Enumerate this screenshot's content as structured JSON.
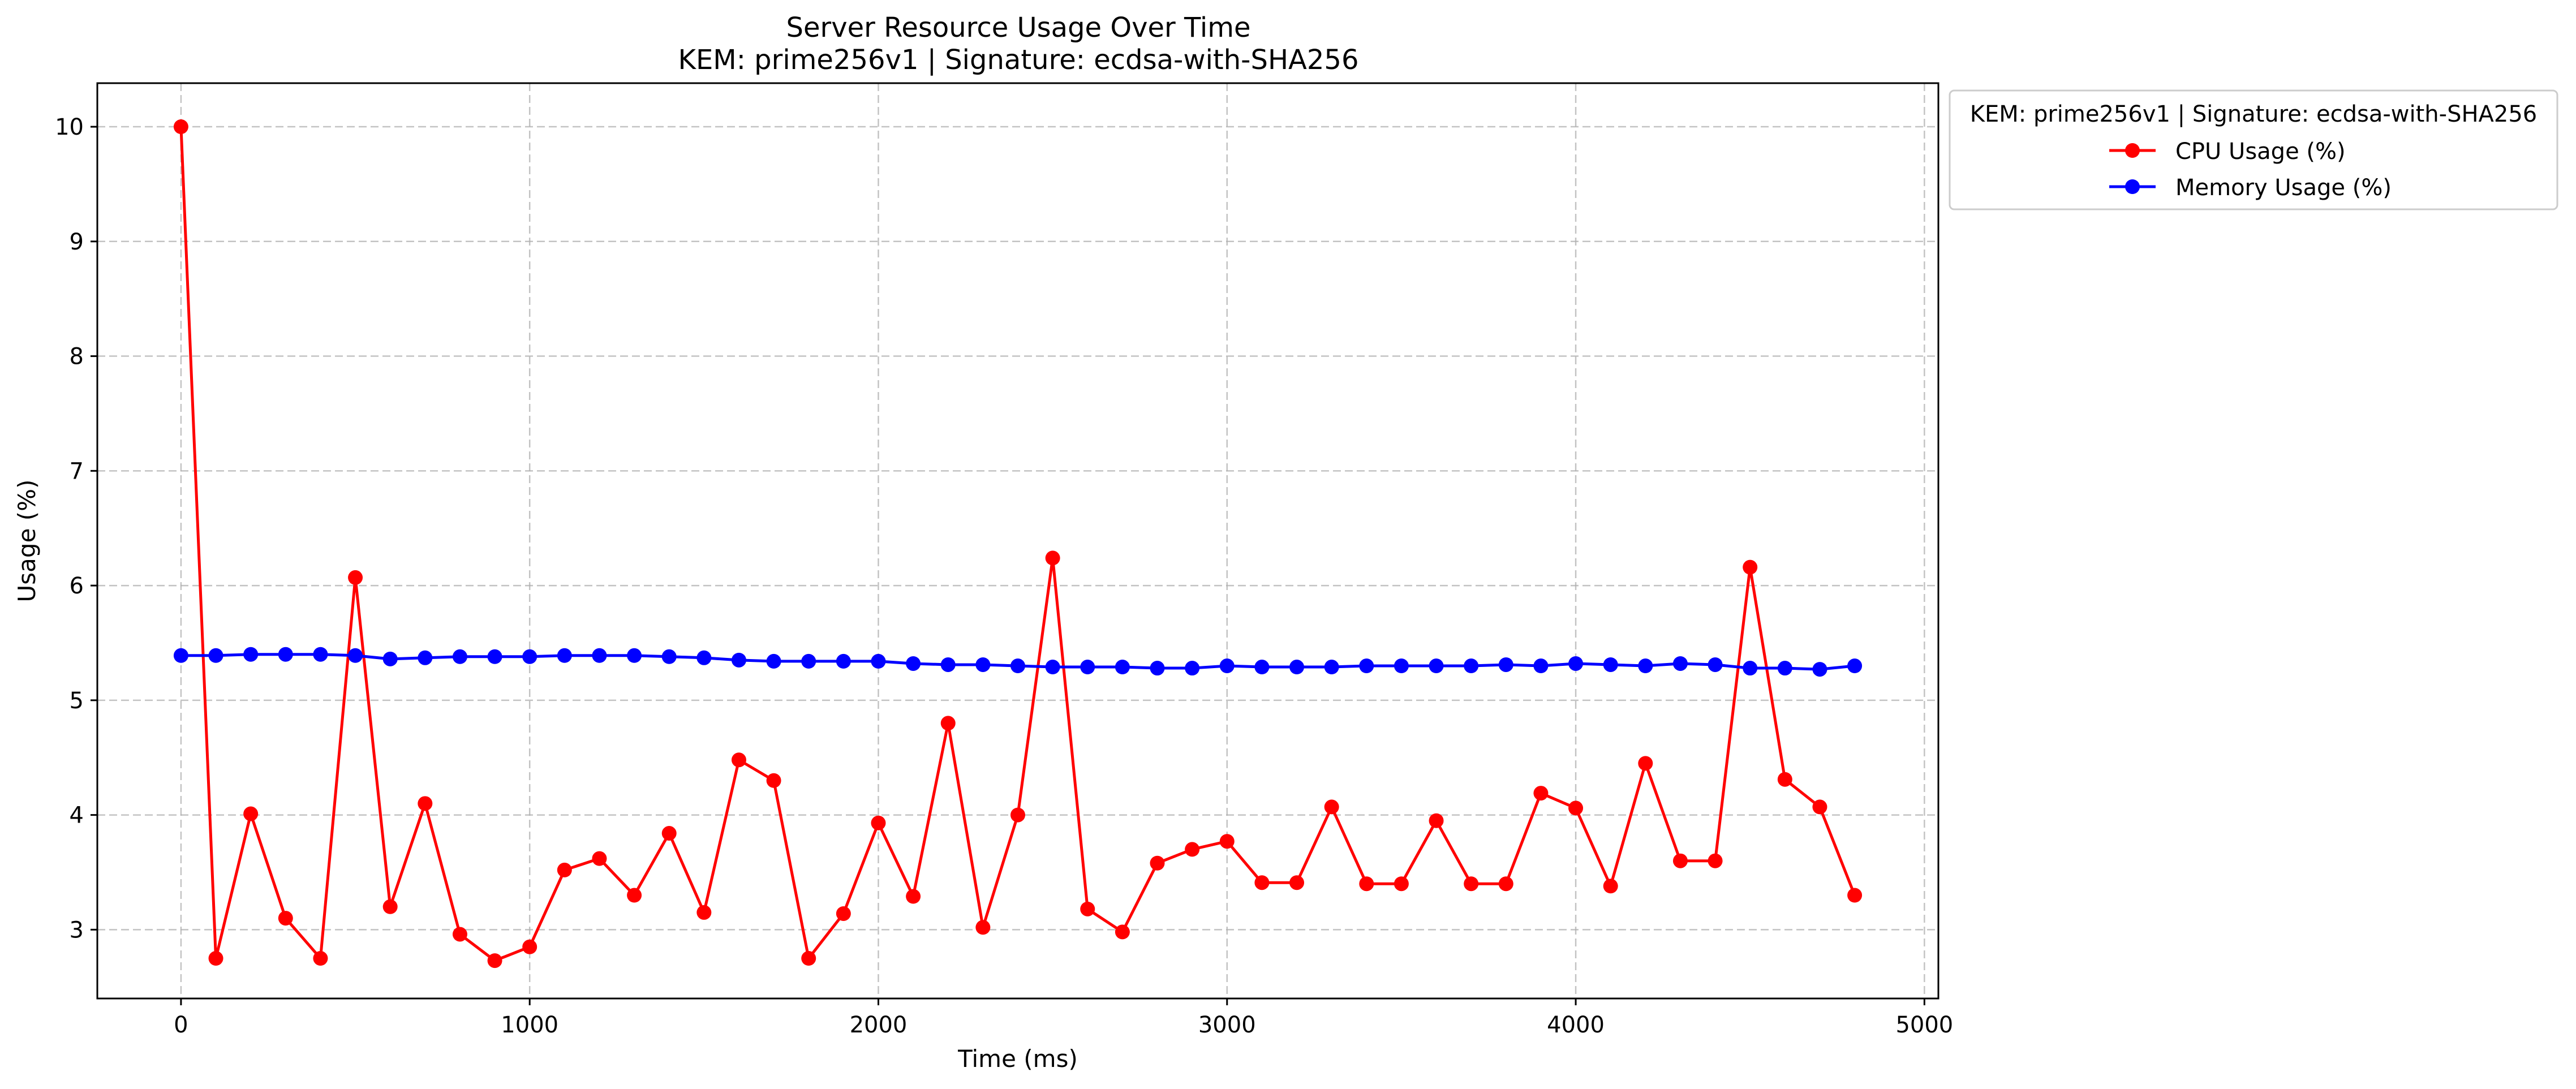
{
  "chart_data": {
    "type": "line",
    "title": "Server Resource Usage Over Time",
    "subtitle": "KEM: prime256v1 | Signature: ecdsa-with-SHA256",
    "xlabel": "Time (ms)",
    "ylabel": "Usage (%)",
    "xlim": [
      -240,
      5040
    ],
    "ylim": [
      2.4,
      10.38
    ],
    "xticks": [
      0,
      1000,
      2000,
      3000,
      4000,
      5000
    ],
    "yticks": [
      3,
      4,
      5,
      6,
      7,
      8,
      9,
      10
    ],
    "grid": true,
    "legend": {
      "title": "KEM: prime256v1 | Signature: ecdsa-with-SHA256",
      "placement": "outside-top-right"
    },
    "x": [
      0,
      100,
      200,
      300,
      400,
      500,
      600,
      700,
      800,
      900,
      1000,
      1100,
      1200,
      1300,
      1400,
      1500,
      1600,
      1700,
      1800,
      1900,
      2000,
      2100,
      2200,
      2300,
      2400,
      2500,
      2600,
      2700,
      2800,
      2900,
      3000,
      3100,
      3200,
      3300,
      3400,
      3500,
      3600,
      3700,
      3800,
      3900,
      4000,
      4100,
      4200,
      4300,
      4400,
      4500,
      4600,
      4700,
      4800
    ],
    "series": [
      {
        "name": "CPU Usage (%)",
        "color": "#ff0000",
        "values": [
          10.0,
          2.75,
          4.01,
          3.1,
          2.75,
          6.07,
          3.2,
          4.1,
          2.96,
          2.73,
          2.85,
          3.52,
          3.62,
          3.3,
          3.84,
          3.15,
          4.48,
          4.3,
          2.75,
          3.14,
          3.93,
          3.29,
          4.8,
          3.02,
          4.0,
          6.24,
          3.18,
          2.98,
          3.58,
          3.7,
          3.77,
          3.41,
          3.41,
          4.07,
          3.4,
          3.4,
          3.95,
          3.4,
          3.4,
          4.19,
          4.06,
          3.38,
          4.45,
          3.6,
          3.6,
          6.16,
          4.31,
          4.07,
          3.3
        ]
      },
      {
        "name": "Memory Usage (%)",
        "color": "#0000ff",
        "values": [
          5.39,
          5.39,
          5.4,
          5.4,
          5.4,
          5.39,
          5.36,
          5.37,
          5.38,
          5.38,
          5.38,
          5.39,
          5.39,
          5.39,
          5.38,
          5.37,
          5.35,
          5.34,
          5.34,
          5.34,
          5.34,
          5.32,
          5.31,
          5.31,
          5.3,
          5.29,
          5.29,
          5.29,
          5.28,
          5.28,
          5.3,
          5.29,
          5.29,
          5.29,
          5.3,
          5.3,
          5.3,
          5.3,
          5.31,
          5.3,
          5.32,
          5.31,
          5.3,
          5.32,
          5.31,
          5.28,
          5.28,
          5.27,
          5.3
        ]
      }
    ]
  }
}
